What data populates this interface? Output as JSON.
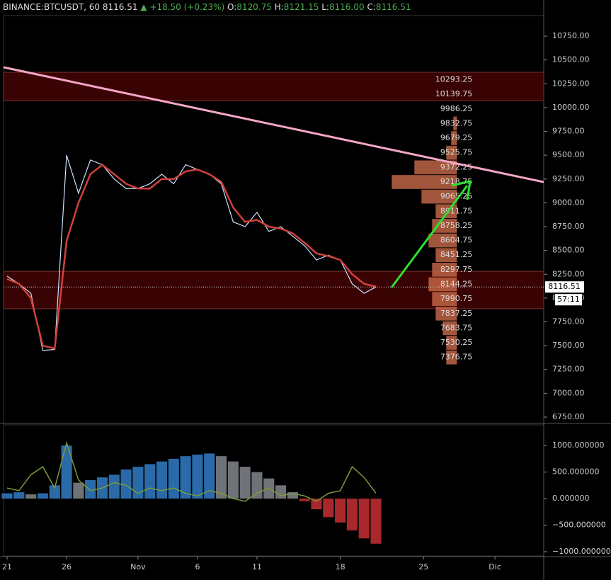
{
  "header": {
    "symbol": "BINANCE:BTCUSDT, 60",
    "price": "8116.51",
    "arrow": "▲",
    "change": "+18.50 (+0.23%)",
    "o_label": "O:",
    "open": "8120.75",
    "h_label": "H:",
    "high": "8121.15",
    "l_label": "L:",
    "low": "8116.00",
    "c_label": "C:",
    "close": "8116.51"
  },
  "chart_data": [
    {
      "type": "line",
      "x": [
        0,
        1,
        2,
        3,
        4,
        5,
        6,
        7,
        8,
        9,
        10,
        11,
        12,
        13,
        14,
        15,
        16,
        17,
        18,
        19,
        20,
        21,
        22,
        23,
        24,
        25,
        26,
        27,
        28,
        29,
        30,
        31
      ],
      "series": [
        {
          "color": "#cfe3ff",
          "values": [
            8230,
            8150,
            8050,
            7450,
            7460,
            9500,
            9100,
            9450,
            9400,
            9250,
            9150,
            9150,
            9200,
            9300,
            9200,
            9400,
            9350,
            9300,
            9200,
            8800,
            8750,
            8900,
            8700,
            8750,
            8650,
            8550,
            8400,
            8450,
            8400,
            8150,
            8050,
            8116.51
          ]
        },
        {
          "color": "#d0403a",
          "values": [
            8200,
            8150,
            8000,
            7500,
            7470,
            8600,
            9000,
            9300,
            9400,
            9300,
            9200,
            9150,
            9150,
            9250,
            9250,
            9330,
            9350,
            9300,
            9220,
            8950,
            8800,
            8820,
            8750,
            8730,
            8680,
            8580,
            8470,
            8440,
            8400,
            8250,
            8150,
            8120
          ]
        }
      ],
      "trendline": {
        "x": [
          -0.3,
          45.1
        ],
        "values": [
          10423,
          9218
        ],
        "color": "#f4a6c8"
      },
      "zones": [
        [
          10073,
          10371
        ],
        [
          7888,
          8281
        ]
      ],
      "zone_color": "#3a0303",
      "profile": {
        "x": 37.8,
        "color": "#c96a4a",
        "levels": [
          10293.25,
          10139.75,
          9986.25,
          9832.75,
          9679.25,
          9525.75,
          9372.25,
          9218.75,
          9065.25,
          8911.75,
          8758.25,
          8604.75,
          8451.25,
          8297.75,
          8144.25,
          7990.75,
          7837.25,
          7683.75,
          7530.25,
          7376.75
        ],
        "volumes": [
          0,
          0,
          0,
          5,
          8,
          15,
          60,
          92,
          50,
          30,
          35,
          40,
          30,
          35,
          40,
          35,
          30,
          20,
          15,
          15
        ]
      },
      "last": 8116.51,
      "countdown": "57:11",
      "xlim": [
        -0.3,
        45.1
      ],
      "ylim": [
        6683,
        10966
      ],
      "yticks": [
        {
          "value": 10750,
          "label": "10750.00"
        },
        {
          "value": 10500,
          "label": "10500.00"
        },
        {
          "value": 10250,
          "label": "10250.00"
        },
        {
          "value": 10000,
          "label": "10000.00"
        },
        {
          "value": 9750,
          "label": "9750.00"
        },
        {
          "value": 9500,
          "label": "9500.00"
        },
        {
          "value": 9250,
          "label": "9250.00"
        },
        {
          "value": 9000,
          "label": "9000.00"
        },
        {
          "value": 8750,
          "label": "8750.00"
        },
        {
          "value": 8500,
          "label": "8500.00"
        },
        {
          "value": 8250,
          "label": "8250.00"
        },
        {
          "value": 8000,
          "label": "8000.00"
        },
        {
          "value": 7750,
          "label": "7750.00"
        },
        {
          "value": 7500,
          "label": "7500.00"
        },
        {
          "value": 7250,
          "label": "7250.00"
        },
        {
          "value": 7000,
          "label": "7000.00"
        },
        {
          "value": 6750,
          "label": "6750.00"
        }
      ]
    },
    {
      "type": "bar",
      "x": [
        0,
        1,
        2,
        3,
        4,
        5,
        6,
        7,
        8,
        9,
        10,
        11,
        12,
        13,
        14,
        15,
        16,
        17,
        18,
        19,
        20,
        21,
        22,
        23,
        24,
        25,
        26,
        27,
        28,
        29,
        30,
        31
      ],
      "values": [
        100,
        120,
        80,
        100,
        250,
        1000,
        300,
        350,
        400,
        450,
        550,
        600,
        650,
        700,
        750,
        800,
        830,
        850,
        800,
        700,
        600,
        500,
        380,
        250,
        120,
        -50,
        -200,
        -350,
        -450,
        -600,
        -750,
        -850
      ],
      "colors": {
        "rising": "#2a6aa8",
        "falling": "#6f7378",
        "negative": "#a8282c"
      },
      "line": {
        "color": "#7a9a3a",
        "values": [
          200,
          150,
          450,
          600,
          200,
          1050,
          350,
          150,
          200,
          300,
          250,
          100,
          200,
          150,
          200,
          100,
          50,
          150,
          100,
          0,
          -50,
          100,
          200,
          50,
          100,
          50,
          -50,
          100,
          150,
          600,
          400,
          100
        ]
      },
      "xlim": [
        -0.3,
        45.1
      ],
      "ylim": [
        -1080,
        1389
      ],
      "yticks": [
        {
          "value": 1000,
          "label": "1000.000000"
        },
        {
          "value": 500,
          "label": "500.000000"
        },
        {
          "value": 0,
          "label": "0.000000"
        },
        {
          "value": -500,
          "label": "−500.000000"
        },
        {
          "value": -1000,
          "label": "−1000.000000"
        }
      ],
      "xticks": [
        {
          "value": 0,
          "label": "21"
        },
        {
          "value": 5,
          "label": "26"
        },
        {
          "value": 11,
          "label": "Nov"
        },
        {
          "value": 16,
          "label": "6"
        },
        {
          "value": 21,
          "label": "11"
        },
        {
          "value": 28,
          "label": "18"
        },
        {
          "value": 35,
          "label": "25"
        },
        {
          "value": 41,
          "label": "Dic"
        }
      ]
    }
  ]
}
